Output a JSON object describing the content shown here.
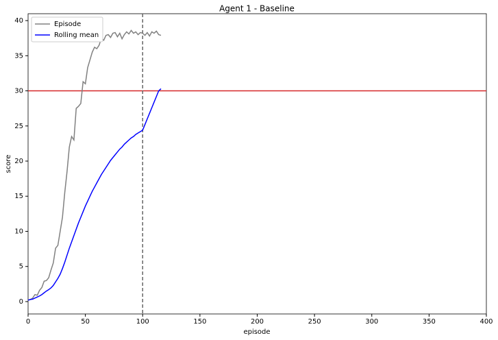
{
  "chart_data": {
    "type": "line",
    "title": "Agent 1 - Baseline",
    "x_label": "episode",
    "y_label": "score",
    "x": [
      0,
      2,
      4,
      6,
      8,
      10,
      12,
      14,
      16,
      18,
      20,
      22,
      24,
      26,
      28,
      30,
      32,
      34,
      36,
      38,
      40,
      42,
      44,
      46,
      48,
      50,
      52,
      54,
      56,
      58,
      60,
      62,
      64,
      66,
      68,
      70,
      72,
      74,
      76,
      78,
      80,
      82,
      84,
      86,
      88,
      90,
      92,
      94,
      96,
      98,
      100,
      102,
      104,
      106,
      108,
      110,
      112,
      114,
      116
    ],
    "series": [
      {
        "name": "Episode",
        "color": "#808080",
        "values": [
          0.2,
          0.3,
          0.5,
          1.0,
          0.9,
          1.6,
          2.0,
          2.9,
          3.0,
          3.4,
          4.5,
          5.5,
          7.6,
          8.0,
          10.0,
          12.0,
          15.5,
          18.5,
          22.0,
          23.5,
          23.0,
          27.5,
          27.8,
          28.2,
          31.3,
          31.0,
          33.3,
          34.4,
          35.5,
          36.2,
          36.0,
          36.5,
          37.5,
          37.2,
          37.9,
          38.0,
          37.6,
          38.2,
          38.3,
          37.7,
          38.2,
          37.4,
          38.0,
          38.4,
          38.1,
          38.6,
          38.2,
          38.4,
          38.0,
          38.3,
          38.2,
          37.9,
          38.3,
          37.8,
          38.4,
          38.2,
          38.5,
          38.0,
          37.9
        ]
      },
      {
        "name": "Rolling mean",
        "color": "#0000ff",
        "values": [
          0.2,
          0.3,
          0.35,
          0.5,
          0.65,
          0.8,
          1.0,
          1.25,
          1.5,
          1.7,
          1.95,
          2.3,
          2.8,
          3.3,
          3.9,
          4.7,
          5.6,
          6.6,
          7.6,
          8.5,
          9.4,
          10.3,
          11.2,
          12.0,
          12.8,
          13.6,
          14.3,
          15.0,
          15.7,
          16.3,
          16.9,
          17.5,
          18.1,
          18.6,
          19.1,
          19.6,
          20.1,
          20.5,
          20.9,
          21.3,
          21.7,
          22.0,
          22.4,
          22.7,
          23.0,
          23.3,
          23.5,
          23.8,
          24.0,
          24.2,
          24.4,
          25.2,
          26.0,
          26.8,
          27.6,
          28.4,
          29.2,
          30.0,
          30.3
        ]
      }
    ],
    "hline": {
      "value": 30,
      "color": "#d62728"
    },
    "vline": {
      "value": 100,
      "color": "#666666"
    },
    "xlim": [
      0,
      400
    ],
    "xticks": [
      0,
      50,
      100,
      150,
      200,
      250,
      300,
      350,
      400
    ],
    "ylim": [
      -1.76,
      40.98
    ],
    "yticks": [
      0,
      5,
      10,
      15,
      20,
      25,
      30,
      35,
      40
    ],
    "legend": "upper left"
  }
}
